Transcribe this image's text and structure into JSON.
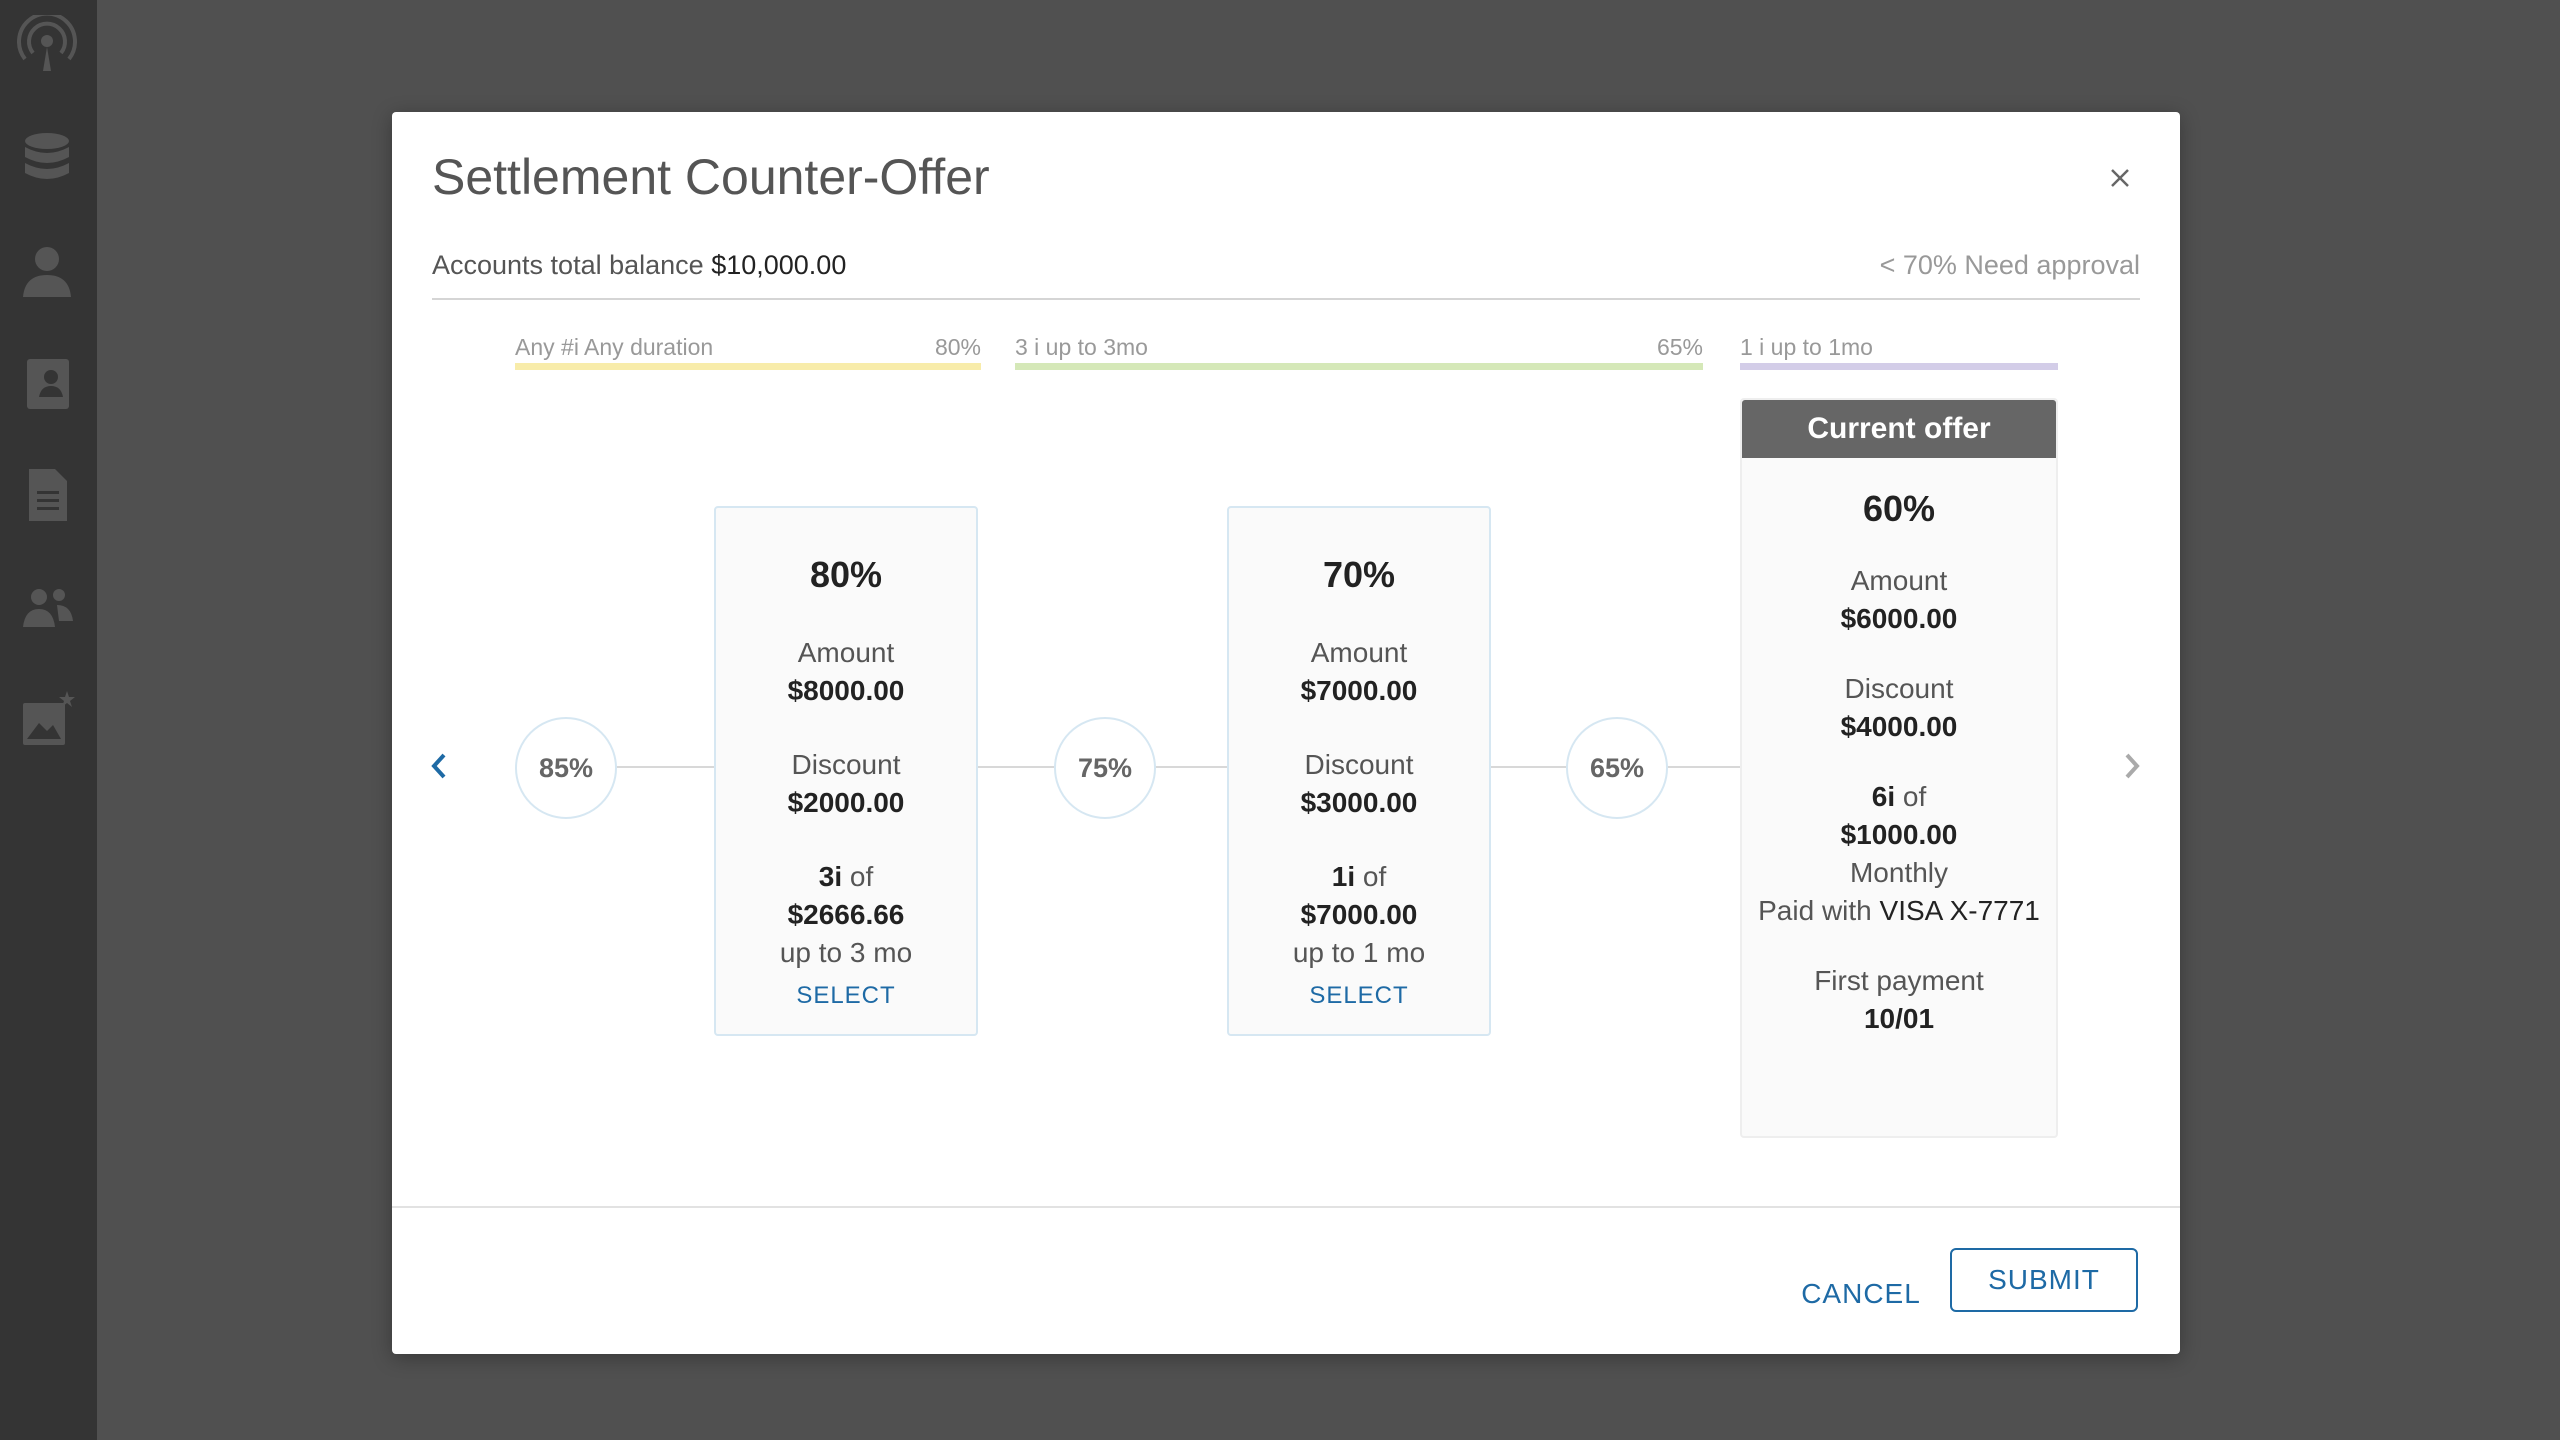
{
  "sidebar": {
    "icons": [
      "broadcast-icon",
      "database-icon",
      "user-icon",
      "contacts-book-icon",
      "document-icon",
      "team-icon",
      "image-star-icon"
    ]
  },
  "modal": {
    "title": "Settlement Counter-Offer",
    "balance_label": "Accounts total balance",
    "balance_value": "$10,000.00",
    "approval_note": "< 70% Need approval"
  },
  "tiers": [
    {
      "label": "Any #i Any duration",
      "pct": "80%",
      "color": "#f8ecaa"
    },
    {
      "label": "3 i  up to 3mo",
      "pct": "65%",
      "color": "#d5e8b8"
    },
    {
      "label": "1 i  up to 1mo",
      "pct": "",
      "color": "#d3cde8"
    }
  ],
  "steps": [
    "85%",
    "75%",
    "65%"
  ],
  "options": [
    {
      "pct": "80%",
      "amount_label": "Amount",
      "amount": "$8000.00",
      "discount_label": "Discount",
      "discount": "$2000.00",
      "inst_count": "3i",
      "inst_of": "of",
      "inst_amount": "$2666.66",
      "term": "up to 3 mo",
      "select_label": "SELECT"
    },
    {
      "pct": "70%",
      "amount_label": "Amount",
      "amount": "$7000.00",
      "discount_label": "Discount",
      "discount": "$3000.00",
      "inst_count": "1i",
      "inst_of": "of",
      "inst_amount": "$7000.00",
      "term": "up to 1 mo",
      "select_label": "SELECT"
    }
  ],
  "current": {
    "header": "Current offer",
    "pct": "60%",
    "amount_label": "Amount",
    "amount": "$6000.00",
    "discount_label": "Discount",
    "discount": "$4000.00",
    "inst_count": "6i",
    "inst_of": "of",
    "inst_amount": "$1000.00",
    "frequency": "Monthly",
    "paid_label": "Paid with",
    "paid_card": "VISA X-7771",
    "first_payment_label": "First payment",
    "first_payment_date": "10/01"
  },
  "buttons": {
    "cancel": "CANCEL",
    "submit": "SUBMIT"
  },
  "colors": {
    "accent": "#1e6aa5",
    "chevron_active": "#1e6aa5",
    "chevron_inactive": "#aaaaaa"
  }
}
